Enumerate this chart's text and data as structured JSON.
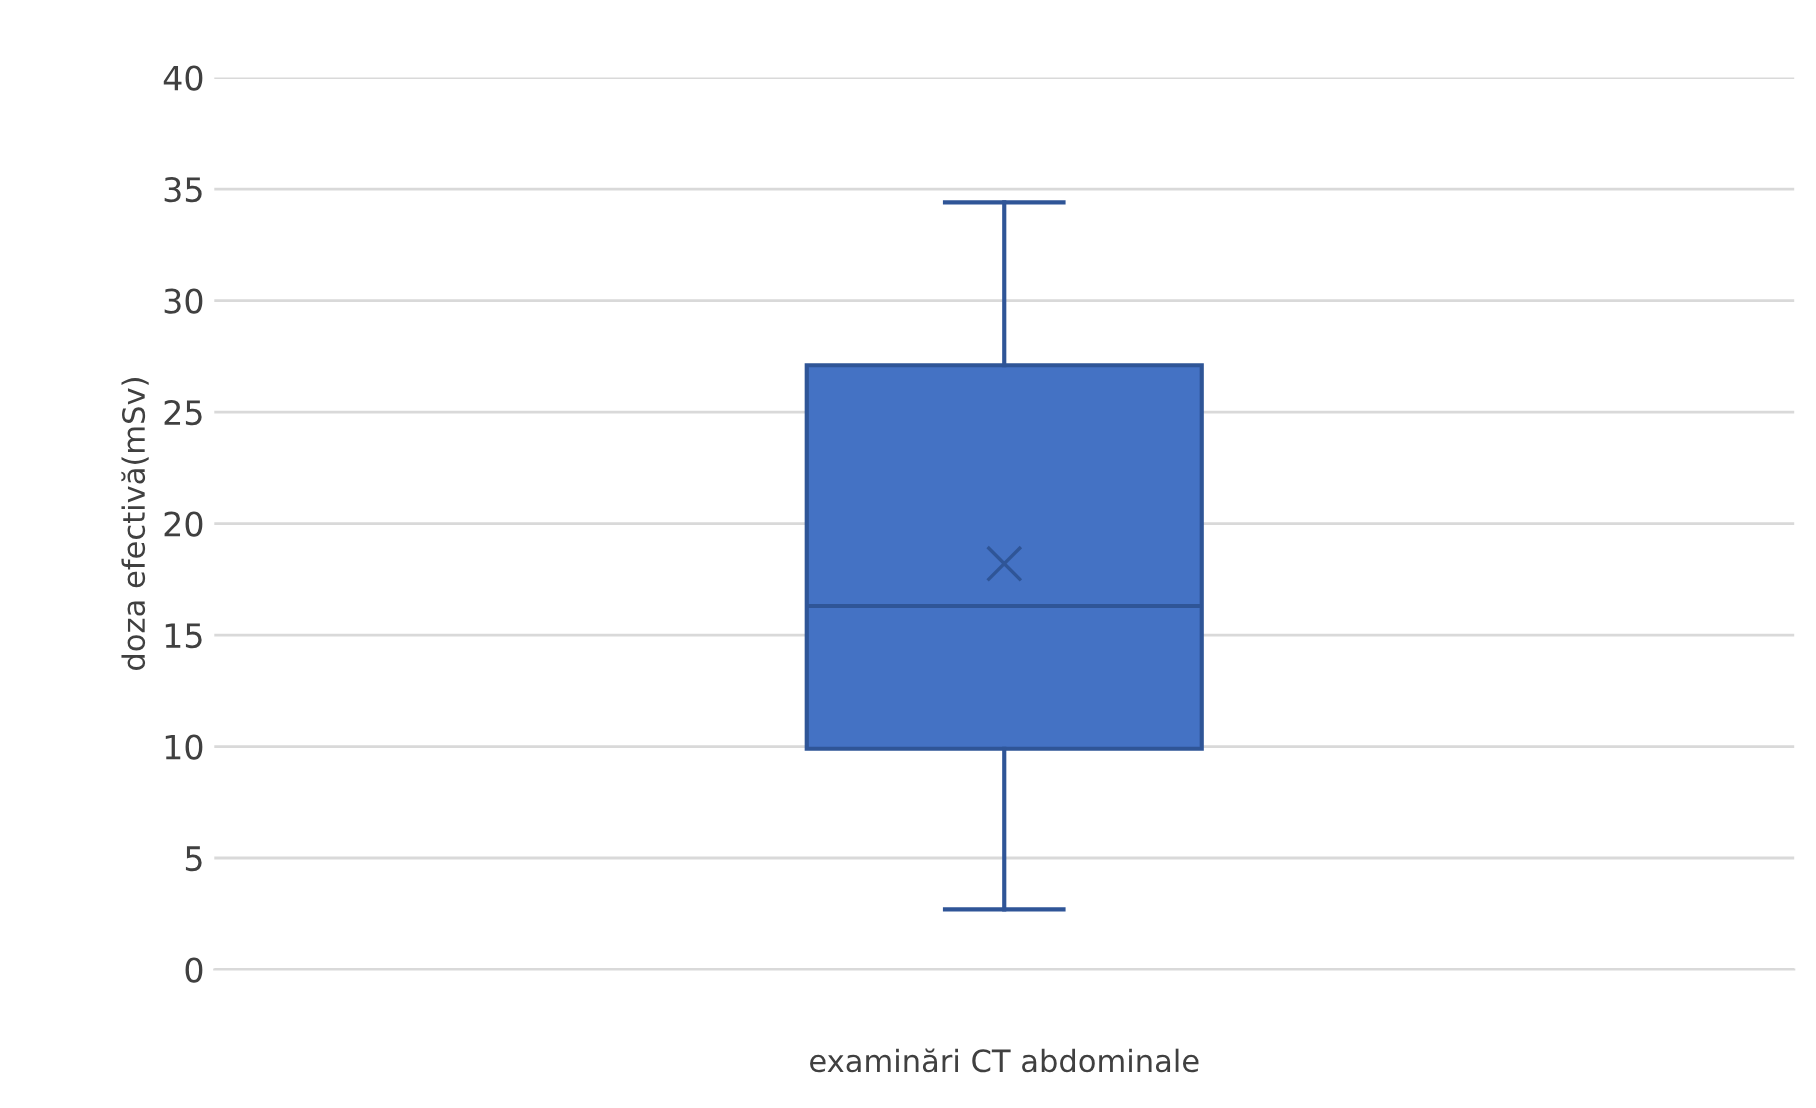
{
  "chart_data": {
    "type": "box",
    "ylabel": "doza efectivă(mSv)",
    "xlabel": "examinări CT abdominale",
    "categories": [
      null
    ],
    "boxes": [
      {
        "low": 2.7,
        "q1": 9.9,
        "median": 16.3,
        "q3": 27.1,
        "high": 34.4,
        "mean": 18.2
      }
    ],
    "color": "#4472c4",
    "ylim": [
      0,
      40
    ],
    "yticks": [
      0,
      5,
      10,
      15,
      20,
      25,
      30,
      35,
      40
    ],
    "grid": "y",
    "legend": false
  }
}
